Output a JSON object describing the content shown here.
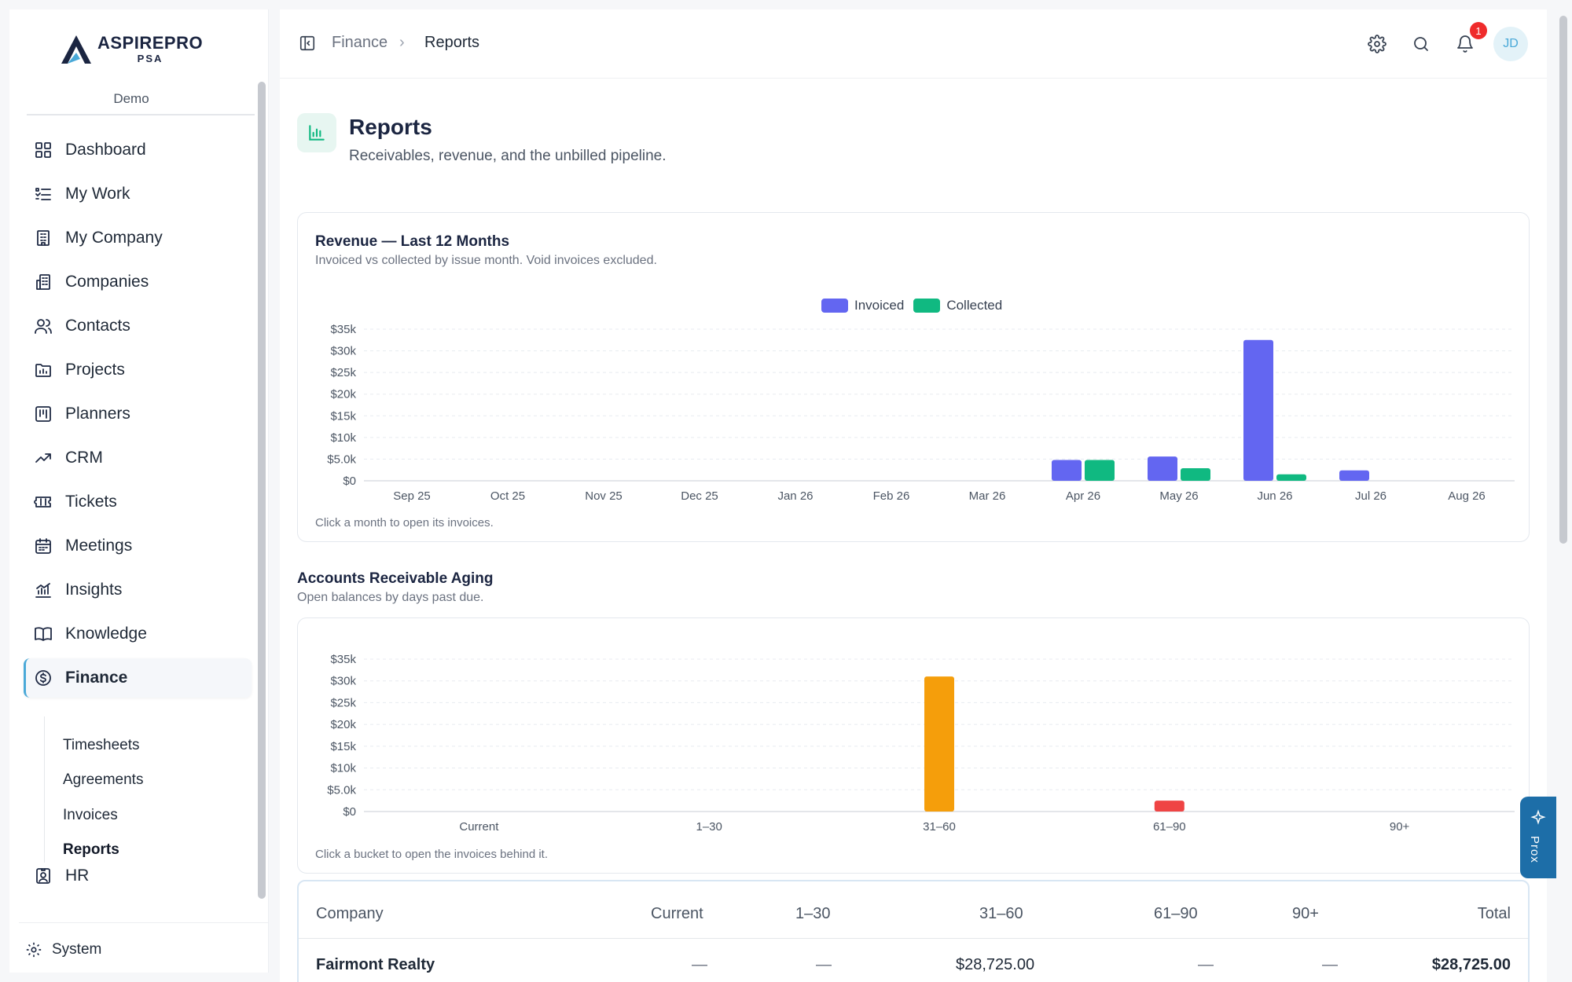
{
  "brand": {
    "name": "ASPIREPRO",
    "sub": "PSA",
    "tenant": "Demo"
  },
  "sidebar": {
    "items": [
      {
        "label": "Dashboard",
        "icon": "dashboard-icon"
      },
      {
        "label": "My Work",
        "icon": "list-check-icon"
      },
      {
        "label": "My Company",
        "icon": "building-icon"
      },
      {
        "label": "Companies",
        "icon": "buildings-icon"
      },
      {
        "label": "Contacts",
        "icon": "users-icon"
      },
      {
        "label": "Projects",
        "icon": "folder-chart-icon"
      },
      {
        "label": "Planners",
        "icon": "kanban-icon"
      },
      {
        "label": "CRM",
        "icon": "trending-up-icon"
      },
      {
        "label": "Tickets",
        "icon": "ticket-icon"
      },
      {
        "label": "Meetings",
        "icon": "calendar-icon"
      },
      {
        "label": "Insights",
        "icon": "bar-chart-icon"
      },
      {
        "label": "Knowledge",
        "icon": "book-icon"
      },
      {
        "label": "Finance",
        "icon": "dollar-circle-icon",
        "active": true
      },
      {
        "label": "HR",
        "icon": "id-badge-icon"
      }
    ],
    "finance_sub": [
      "Timesheets",
      "Agreements",
      "Invoices",
      "Reports"
    ],
    "system_label": "System"
  },
  "topbar": {
    "breadcrumb": [
      "Finance",
      "Reports"
    ],
    "breadcrumb_sep": "›",
    "notification_count": "1",
    "avatar_initials": "JD"
  },
  "page": {
    "title": "Reports",
    "subtitle": "Receivables, revenue, and the unbilled pipeline."
  },
  "revenue": {
    "title": "Revenue — Last 12 Months",
    "subtitle": "Invoiced vs collected by issue month. Void invoices excluded.",
    "hint": "Click a month to open its invoices."
  },
  "aging": {
    "title": "Accounts Receivable Aging",
    "subtitle": "Open balances by days past due.",
    "hint": "Click a bucket to open the invoices behind it."
  },
  "table": {
    "columns": [
      "Company",
      "Current",
      "1–30",
      "31–60",
      "61–90",
      "90+",
      "Total"
    ],
    "rows": [
      [
        "Fairmont Realty",
        "—",
        "—",
        "$28,725.00",
        "—",
        "—",
        "$28,725.00"
      ]
    ]
  },
  "prox_label": "Prox",
  "chart_data": [
    {
      "type": "bar",
      "title": "Revenue — Last 12 Months",
      "categories": [
        "Sep 25",
        "Oct 25",
        "Nov 25",
        "Dec 25",
        "Jan 26",
        "Feb 26",
        "Mar 26",
        "Apr 26",
        "May 26",
        "Jun 26",
        "Jul 26",
        "Aug 26"
      ],
      "series": [
        {
          "name": "Invoiced",
          "color": "#6366f1",
          "values": [
            0,
            0,
            0,
            0,
            0,
            0,
            0,
            4800,
            5600,
            32500,
            2400,
            0
          ]
        },
        {
          "name": "Collected",
          "color": "#10b981",
          "values": [
            0,
            0,
            0,
            0,
            0,
            0,
            0,
            4800,
            2900,
            1500,
            0,
            0
          ]
        }
      ],
      "yticks": [
        "$0",
        "$5.0k",
        "$10k",
        "$15k",
        "$20k",
        "$25k",
        "$30k",
        "$35k"
      ],
      "ylim": [
        0,
        35000
      ],
      "grid": true,
      "legend": "top-center"
    },
    {
      "type": "bar",
      "title": "Accounts Receivable Aging",
      "categories": [
        "Current",
        "1–30",
        "31–60",
        "61–90",
        "90+"
      ],
      "values": [
        0,
        0,
        31000,
        2500,
        0
      ],
      "colors": [
        "#f59e0b",
        "#f59e0b",
        "#f59e0b",
        "#ef4444",
        "#b91c1c"
      ],
      "yticks": [
        "$0",
        "$5.0k",
        "$10k",
        "$15k",
        "$20k",
        "$25k",
        "$30k",
        "$35k"
      ],
      "ylim": [
        0,
        35000
      ],
      "grid": true
    }
  ]
}
